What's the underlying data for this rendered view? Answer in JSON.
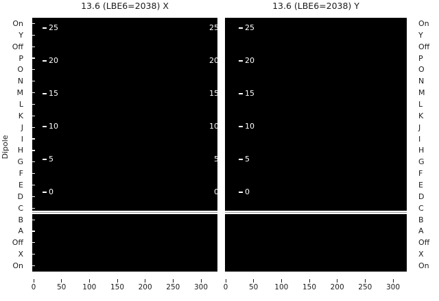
{
  "ylabel": "Dipole",
  "panels": [
    {
      "title": "13.6 (LBE6=2038) X"
    },
    {
      "title": "13.6 (LBE6=2038) Y"
    }
  ],
  "y_categories": [
    "On",
    "Y",
    "Off",
    "P",
    "O",
    "N",
    "M",
    "L",
    "K",
    "J",
    "I",
    "H",
    "G",
    "F",
    "E",
    "D",
    "C",
    "B",
    "A",
    "Off",
    "X",
    "On"
  ],
  "x_tick_labels": [
    "0",
    "50",
    "100",
    "150",
    "200",
    "250",
    "300"
  ],
  "inner_scale_labels": [
    "25",
    "20",
    "15",
    "10",
    "5",
    "0"
  ],
  "colors": {
    "panel_bg": "#000000",
    "inner_text": "#ffffff",
    "outer_text": "#1a1a1a",
    "separator": "#ffffff",
    "separator_line": "#999999"
  },
  "chart_data": [
    {
      "type": "heatmap",
      "title": "13.6 (LBE6=2038) X",
      "xlabel": "",
      "ylabel": "Dipole",
      "x_ticks": [
        0,
        50,
        100,
        150,
        200,
        250,
        300
      ],
      "x_range": [
        0,
        330
      ],
      "y_categories": [
        "On",
        "Y",
        "Off",
        "P",
        "O",
        "N",
        "M",
        "L",
        "K",
        "J",
        "I",
        "H",
        "G",
        "F",
        "E",
        "D",
        "C",
        "B",
        "A",
        "Off",
        "X",
        "On"
      ],
      "secondary_value_ticks": [
        25,
        20,
        15,
        10,
        5,
        0
      ],
      "values_description": "uniform minimum intensity - entire heatmap rendered solid black",
      "white_divider_between_rows": [
        "C",
        "B"
      ],
      "grid": false,
      "legend": false
    },
    {
      "type": "heatmap",
      "title": "13.6 (LBE6=2038) Y",
      "xlabel": "",
      "ylabel": "Dipole",
      "x_ticks": [
        0,
        50,
        100,
        150,
        200,
        250,
        300
      ],
      "x_range": [
        0,
        330
      ],
      "y_categories": [
        "On",
        "Y",
        "Off",
        "P",
        "O",
        "N",
        "M",
        "L",
        "K",
        "J",
        "I",
        "H",
        "G",
        "F",
        "E",
        "D",
        "C",
        "B",
        "A",
        "Off",
        "X",
        "On"
      ],
      "secondary_value_ticks": [
        25,
        20,
        15,
        10,
        5,
        0
      ],
      "values_description": "uniform minimum intensity - entire heatmap rendered solid black",
      "white_divider_between_rows": [
        "C",
        "B"
      ],
      "grid": false,
      "legend": false
    }
  ]
}
